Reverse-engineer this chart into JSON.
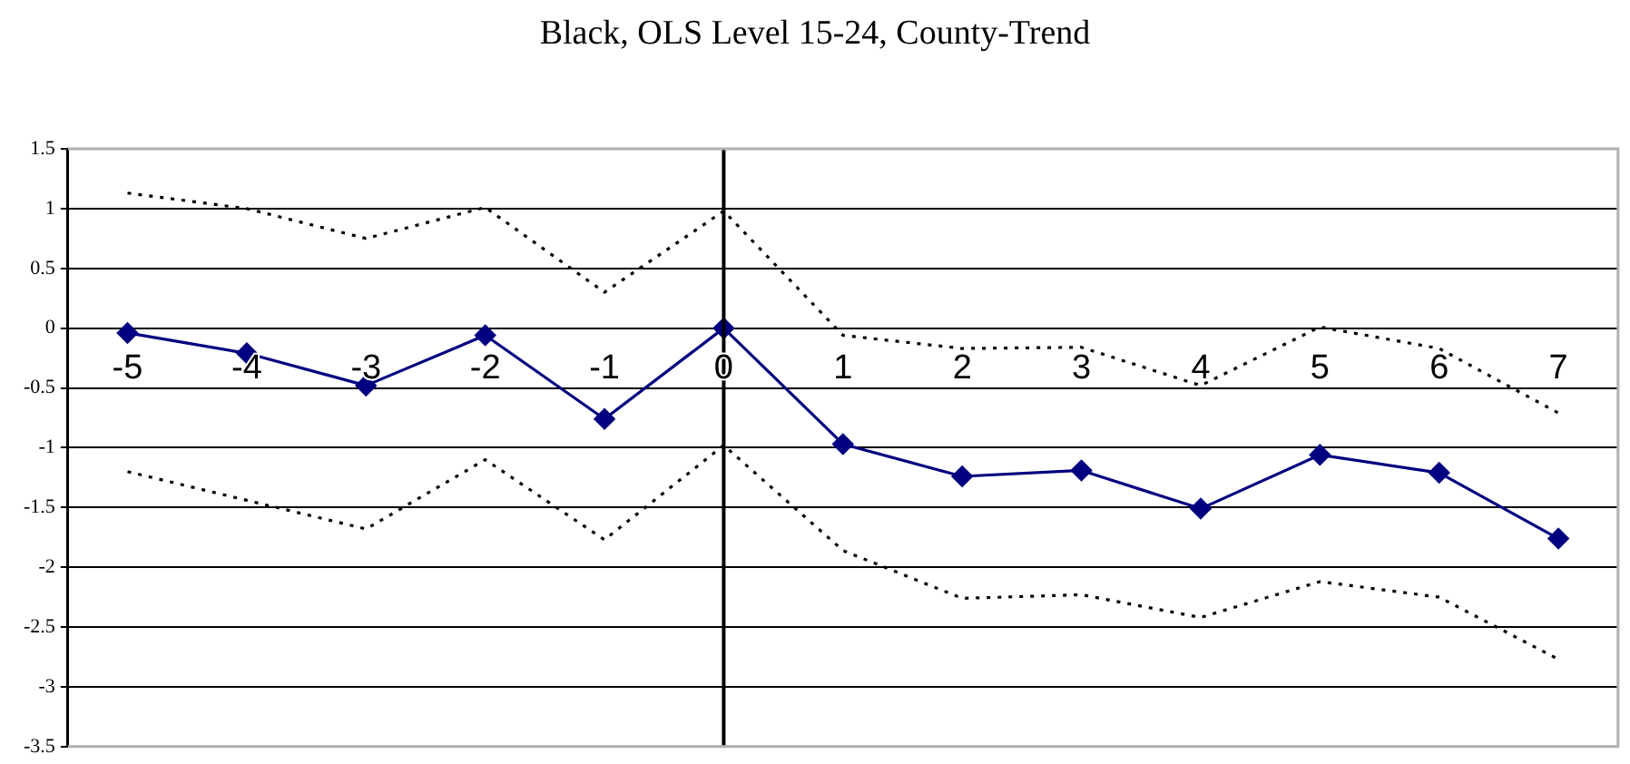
{
  "chart_data": {
    "type": "line",
    "title": "Black, OLS Level 15-24, County-Trend",
    "x": [
      -5,
      -4,
      -3,
      -2,
      -1,
      0,
      1,
      2,
      3,
      4,
      5,
      6,
      7
    ],
    "xlim": [
      -5.5,
      7.5
    ],
    "xticks": [
      -5,
      -4,
      -3,
      -2,
      -1,
      0,
      1,
      2,
      3,
      4,
      5,
      6,
      7
    ],
    "ylim": [
      -3.5,
      1.5
    ],
    "yticks": [
      -3.5,
      -3,
      -2.5,
      -2,
      -1.5,
      -1,
      -0.5,
      0,
      0.5,
      1,
      1.5
    ],
    "grid": "y",
    "legend": false,
    "ref_lines": [
      {
        "axis": "x",
        "value": 0,
        "color": "#000000"
      }
    ],
    "series": [
      {
        "color": "#000000",
        "marker": "none",
        "line_style": "dotted",
        "values": [
          1.13,
          1.0,
          0.75,
          1.01,
          0.3,
          0.98,
          -0.06,
          -0.17,
          -0.16,
          -0.48,
          0.01,
          -0.17,
          -0.71
        ]
      },
      {
        "color": "#000080",
        "marker": "diamond",
        "line_style": "solid",
        "values": [
          -0.04,
          -0.21,
          -0.48,
          -0.06,
          -0.76,
          0,
          -0.97,
          -1.24,
          -1.19,
          -1.51,
          -1.06,
          -1.21,
          -1.76
        ]
      },
      {
        "color": "#000000",
        "marker": "none",
        "line_style": "dotted",
        "values": [
          -1.2,
          -1.44,
          -1.68,
          -1.1,
          -1.77,
          -0.98,
          -1.86,
          -2.26,
          -2.23,
          -2.42,
          -2.12,
          -2.25,
          -2.77
        ]
      }
    ]
  }
}
